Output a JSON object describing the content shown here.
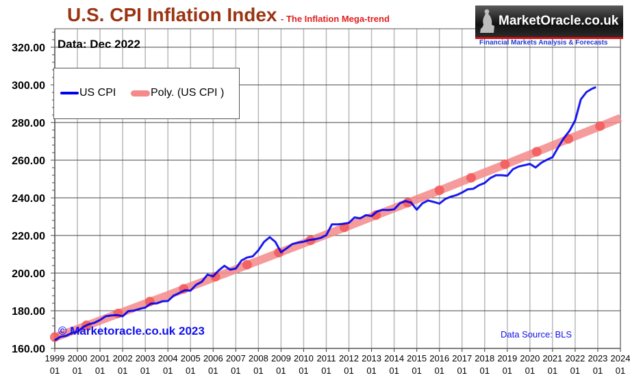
{
  "header": {
    "title": "U.S. CPI Inflation Index",
    "subtitle": "- The Inflation Mega-trend",
    "logo_text": "MarketOracle.co.uk",
    "logo_tagline": "Financial Markets Analysis & Forecasts",
    "data_note": "Data: Dec 2022"
  },
  "footer": {
    "copyright": "© Marketoracle.co.uk 2023",
    "source": "Data Source: BLS"
  },
  "colors": {
    "title": "#9a3412",
    "subtitle": "#e11d1d",
    "cpi_line": "#0000ee",
    "poly_trend": "#f58a8a",
    "poly_markers": "#f25555",
    "annotation_text": "#1010ee"
  },
  "chart_data": {
    "type": "line",
    "title": "U.S. CPI Inflation Index",
    "subtitle": "- The Inflation Mega-trend",
    "xlabel": "",
    "ylabel": "",
    "ylim": [
      160,
      330
    ],
    "xlim": [
      1999.0,
      2024.0
    ],
    "grid": true,
    "legend_position": "top-left",
    "y_ticks": [
      160,
      180,
      200,
      220,
      240,
      260,
      280,
      300,
      320
    ],
    "y_tick_labels": [
      "160.00",
      "180.00",
      "200.00",
      "220.00",
      "240.00",
      "260.00",
      "280.00",
      "300.00",
      "320.00"
    ],
    "x_tick_labels": [
      [
        "1999",
        "01"
      ],
      [
        "2000",
        "01"
      ],
      [
        "2001",
        "01"
      ],
      [
        "2002",
        "01"
      ],
      [
        "2003",
        "01"
      ],
      [
        "2004",
        "01"
      ],
      [
        "2005",
        "01"
      ],
      [
        "2006",
        "01"
      ],
      [
        "2007",
        "01"
      ],
      [
        "2008",
        "01"
      ],
      [
        "2009",
        "01"
      ],
      [
        "2010",
        "01"
      ],
      [
        "2011",
        "01"
      ],
      [
        "2012",
        "01"
      ],
      [
        "2013",
        "01"
      ],
      [
        "2014",
        "01"
      ],
      [
        "2015",
        "01"
      ],
      [
        "2016",
        "01"
      ],
      [
        "2017",
        "01"
      ],
      [
        "2018",
        "01"
      ],
      [
        "2019",
        "01"
      ],
      [
        "2020",
        "01"
      ],
      [
        "2021",
        "01"
      ],
      [
        "2022",
        "01"
      ],
      [
        "2023",
        "01"
      ],
      [
        "2024",
        "01"
      ]
    ],
    "legend": [
      "US CPI",
      "Poly. (US CPI )"
    ],
    "series": [
      {
        "name": "US CPI",
        "x": [
          1999.0,
          1999.25,
          1999.5,
          1999.75,
          2000.0,
          2000.25,
          2000.5,
          2000.75,
          2001.0,
          2001.25,
          2001.5,
          2001.75,
          2002.0,
          2002.25,
          2002.5,
          2002.75,
          2003.0,
          2003.25,
          2003.5,
          2003.75,
          2004.0,
          2004.25,
          2004.5,
          2004.75,
          2005.0,
          2005.25,
          2005.5,
          2005.75,
          2006.0,
          2006.25,
          2006.5,
          2006.75,
          2007.0,
          2007.25,
          2007.5,
          2007.75,
          2008.0,
          2008.25,
          2008.5,
          2008.75,
          2009.0,
          2009.25,
          2009.5,
          2009.75,
          2010.0,
          2010.25,
          2010.5,
          2010.75,
          2011.0,
          2011.25,
          2011.5,
          2011.75,
          2012.0,
          2012.25,
          2012.5,
          2012.75,
          2013.0,
          2013.25,
          2013.5,
          2013.75,
          2014.0,
          2014.25,
          2014.5,
          2014.75,
          2015.0,
          2015.25,
          2015.5,
          2015.75,
          2016.0,
          2016.25,
          2016.5,
          2016.75,
          2017.0,
          2017.25,
          2017.5,
          2017.75,
          2018.0,
          2018.25,
          2018.5,
          2018.75,
          2019.0,
          2019.25,
          2019.5,
          2019.75,
          2020.0,
          2020.25,
          2020.5,
          2020.75,
          2021.0,
          2021.25,
          2021.5,
          2021.75,
          2022.0,
          2022.25,
          2022.5,
          2022.75,
          2022.92
        ],
        "values": [
          164.3,
          166.2,
          166.7,
          168.2,
          168.8,
          171.3,
          172.8,
          173.6,
          175.1,
          177.1,
          177.5,
          177.7,
          177.1,
          179.8,
          180.1,
          181.0,
          181.7,
          183.8,
          183.9,
          185.0,
          185.2,
          188.0,
          189.4,
          190.9,
          190.7,
          193.8,
          195.4,
          199.2,
          198.3,
          201.5,
          203.9,
          201.8,
          202.4,
          206.7,
          208.3,
          208.9,
          212.2,
          216.6,
          219.1,
          216.6,
          211.1,
          213.2,
          215.4,
          216.2,
          216.7,
          217.6,
          218.0,
          218.7,
          220.2,
          225.9,
          225.9,
          226.2,
          226.7,
          229.6,
          229.1,
          230.8,
          230.3,
          232.8,
          233.6,
          233.5,
          233.9,
          237.1,
          238.3,
          237.4,
          233.7,
          237.1,
          238.6,
          237.8,
          236.9,
          239.3,
          240.6,
          241.4,
          242.8,
          244.5,
          244.8,
          246.7,
          247.9,
          250.5,
          252.0,
          252.0,
          251.7,
          255.2,
          256.6,
          257.3,
          258.0,
          256.1,
          258.6,
          260.2,
          261.6,
          266.8,
          271.7,
          275.6,
          281.1,
          292.3,
          296.2,
          298.0,
          298.8
        ]
      },
      {
        "name": "Poly. (US CPI )",
        "x": [
          1999.0,
          2000.0,
          2001.0,
          2002.0,
          2003.0,
          2004.0,
          2005.0,
          2006.0,
          2007.0,
          2008.0,
          2009.0,
          2010.0,
          2011.0,
          2012.0,
          2013.0,
          2014.0,
          2015.0,
          2016.0,
          2017.0,
          2018.0,
          2019.0,
          2020.0,
          2021.0,
          2022.0,
          2023.0,
          2024.0
        ],
        "values": [
          165.8,
          170.3,
          174.8,
          179.3,
          183.8,
          188.3,
          192.9,
          197.4,
          202.0,
          206.6,
          211.2,
          215.8,
          220.5,
          225.1,
          229.8,
          234.5,
          239.2,
          243.9,
          248.7,
          253.4,
          258.2,
          263.0,
          267.8,
          272.7,
          277.5,
          282.4
        ]
      }
    ],
    "poly_markers": {
      "x": [
        1999.0,
        2000.4,
        2001.8,
        2003.2,
        2004.7,
        2006.1,
        2007.5,
        2008.9,
        2010.3,
        2011.8,
        2013.2,
        2014.6,
        2016.0,
        2017.4,
        2018.9,
        2020.3,
        2021.7,
        2023.1
      ],
      "values": [
        166.0,
        172.3,
        178.6,
        184.9,
        191.7,
        198.1,
        204.5,
        210.9,
        217.4,
        224.3,
        230.8,
        237.4,
        244.0,
        250.6,
        257.8,
        264.5,
        271.3,
        278.1
      ]
    }
  }
}
